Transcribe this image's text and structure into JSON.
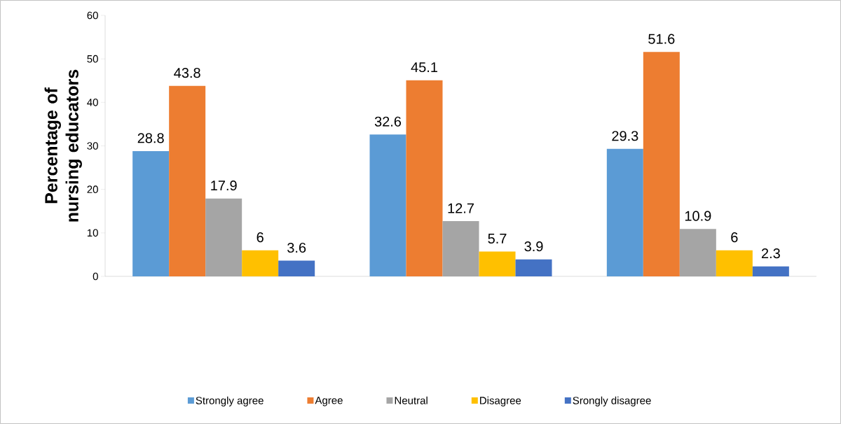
{
  "chart_data": {
    "type": "bar",
    "ylabel": "Percentage of nursing educators",
    "categories": [
      null,
      null,
      null
    ],
    "series": [
      {
        "name": "Strongly agree",
        "color": "#5b9bd5",
        "values": [
          28.8,
          32.6,
          29.3
        ]
      },
      {
        "name": "Agree",
        "color": "#ed7d31",
        "values": [
          43.8,
          45.1,
          51.6
        ]
      },
      {
        "name": "Neutral",
        "color": "#a5a5a5",
        "values": [
          17.9,
          12.7,
          10.9
        ]
      },
      {
        "name": "Disagree",
        "color": "#ffc000",
        "values": [
          6,
          5.7,
          6
        ]
      },
      {
        "name": "Srongly disagree",
        "color": "#4472c4",
        "values": [
          3.6,
          3.9,
          2.3
        ]
      }
    ],
    "ylim": [
      0,
      60
    ],
    "yticks": [
      0,
      10,
      20,
      30,
      40,
      50,
      60
    ],
    "data_labels": true,
    "legend": "bottom",
    "grid": false
  }
}
